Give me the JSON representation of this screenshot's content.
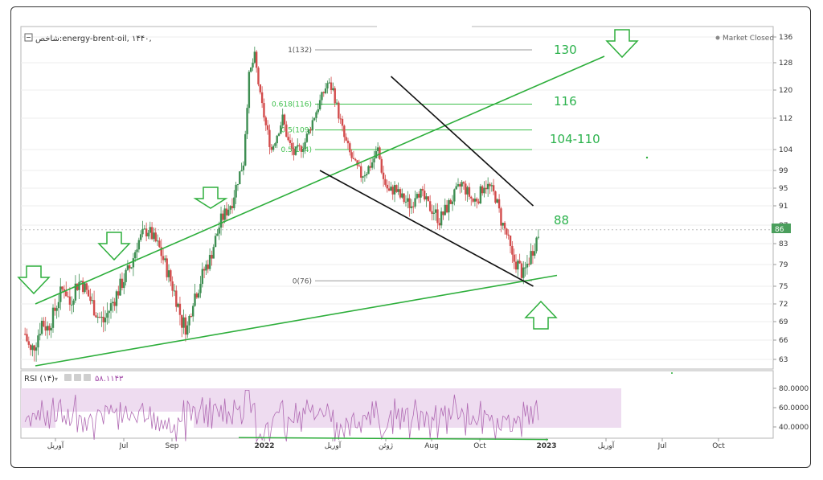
{
  "chart_header": {
    "symbol": "شاخص:energy-brent-oil, ۱۴۴۰,",
    "market_status": "Market Closed"
  },
  "rsi_header": {
    "label": "RSI (۱۴)",
    "value": "۵۸.۱۱۴۳"
  },
  "colors": {
    "up_candle": "#3e8e52",
    "down_candle": "#d24b4b",
    "trend_green": "#2dae3b",
    "trend_black": "#111111",
    "fib_green": "#3cbf4a",
    "rsi_band": "#eedcf0",
    "rsi_line": "#b06ab3",
    "annotation_text": "#2bb24c",
    "last_price_bg": "#4a9e5c"
  },
  "chart_data": {
    "type": "candlestick",
    "title": "",
    "price_axis_ticks": [
      136,
      128,
      120,
      112,
      104,
      99,
      95,
      91,
      87,
      83,
      79,
      75,
      72,
      69,
      66,
      63
    ],
    "rsi_axis_ticks": [
      "80.0000",
      "60.0000",
      "40.0000"
    ],
    "x_tick_labels": [
      "آوریل",
      "Jul",
      "Sep",
      "2022",
      "آوریل",
      "ژوئن",
      "Aug",
      "Oct",
      "2023",
      "آوریل",
      "Jul",
      "Oct"
    ],
    "last_price": "86",
    "fib_levels": [
      {
        "label": "1(132)",
        "price": 132
      },
      {
        "label": "0.618(116)",
        "price": 116
      },
      {
        "label": "0.5(109)",
        "price": 109
      },
      {
        "label": "0.5(104)",
        "price": 104
      },
      {
        "label": "0(76)",
        "price": 76
      }
    ],
    "annotations": [
      "130",
      "116",
      "104-110",
      "88"
    ],
    "trendlines": {
      "upper_green": {
        "from": {
          "date": "2021-03",
          "price": 72
        },
        "to": {
          "date": "2023-03",
          "price": 130
        }
      },
      "lower_green": {
        "from": {
          "date": "2021-03",
          "price": 62
        },
        "to": {
          "date": "2023-01",
          "price": 77
        }
      },
      "upper_black": {
        "from": {
          "date": "2022-06",
          "price": 124
        },
        "to": {
          "date": "2022-12",
          "price": 91
        }
      },
      "lower_black": {
        "from": {
          "date": "2022-03",
          "price": 99
        },
        "to": {
          "date": "2022-12",
          "price": 75
        }
      }
    },
    "rsi_divergence_line": {
      "from_value": 29,
      "to_value": 27
    },
    "price_path": [
      67,
      64,
      66,
      69,
      68,
      70,
      73,
      75,
      72,
      75,
      76,
      74,
      72,
      70,
      69,
      71,
      73,
      75,
      77,
      79,
      83,
      85,
      86,
      84,
      82,
      79,
      76,
      73,
      69,
      68,
      73,
      75,
      78,
      80,
      84,
      88,
      90,
      92,
      97,
      101,
      124,
      130,
      118,
      110,
      104,
      108,
      112,
      106,
      103,
      104,
      106,
      110,
      114,
      118,
      122,
      120,
      113,
      107,
      103,
      100,
      98,
      99,
      101,
      104,
      97,
      94,
      95,
      93,
      92,
      91,
      95,
      93,
      91,
      90,
      88,
      90,
      92,
      94,
      96,
      94,
      92,
      93,
      96,
      95,
      93,
      88,
      85,
      80,
      79,
      77,
      80,
      83,
      86
    ]
  }
}
